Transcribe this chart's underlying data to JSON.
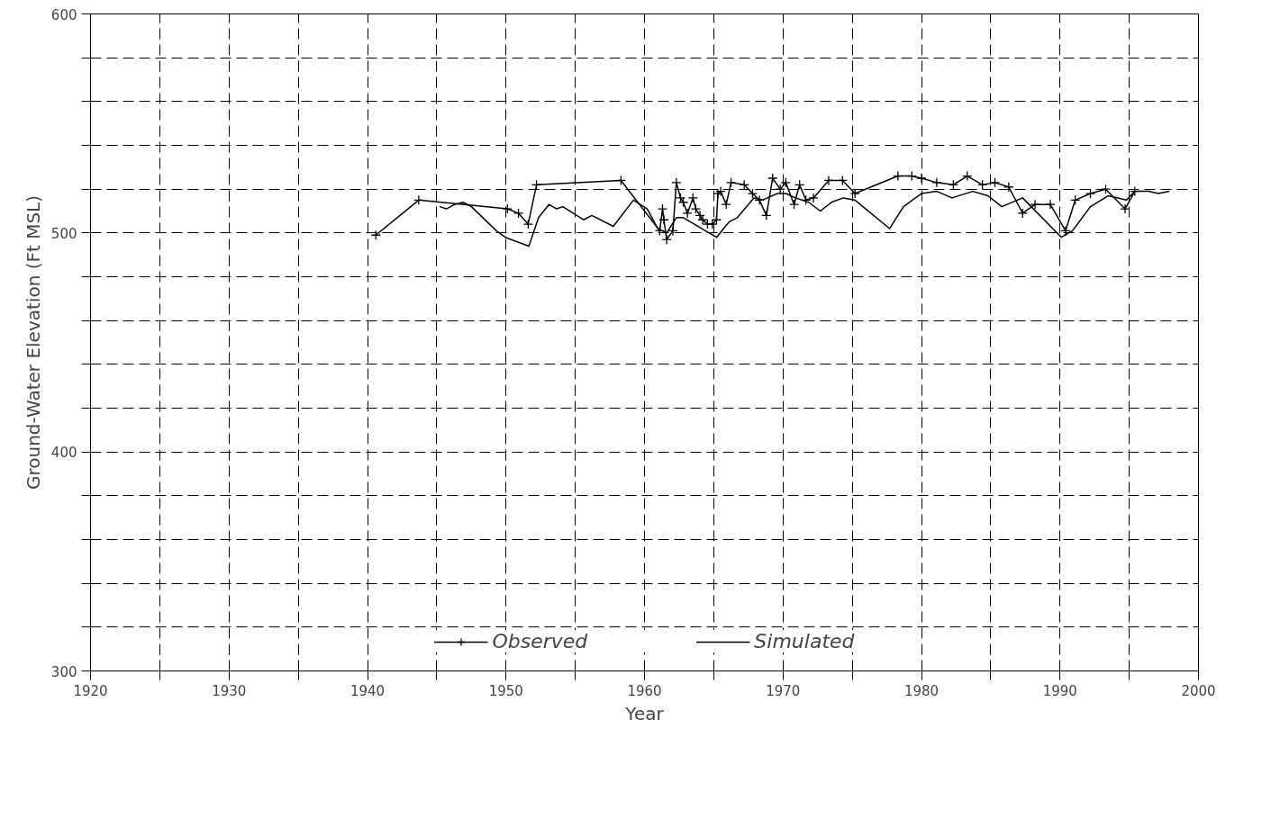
{
  "chart_data": {
    "type": "line",
    "xlabel": "Year",
    "ylabel": "Ground-Water Elevation (Ft MSL)",
    "xlim": [
      1920,
      2000
    ],
    "ylim": [
      300,
      600
    ],
    "xticks": [
      1920,
      {
        "value": 1925,
        "label": null
      },
      1930,
      {
        "value": 1935,
        "label": null
      },
      1940,
      {
        "value": 1945,
        "label": null
      },
      1950,
      {
        "value": 1955,
        "label": null
      },
      1960,
      {
        "value": 1965,
        "label": null
      },
      1970,
      {
        "value": 1975,
        "label": null
      },
      1980,
      {
        "value": 1985,
        "label": null
      },
      1990,
      {
        "value": 1995,
        "label": null
      },
      2000
    ],
    "yticks": [
      300,
      {
        "value": 320,
        "label": null
      },
      {
        "value": 340,
        "label": null
      },
      {
        "value": 360,
        "label": null
      },
      {
        "value": 380,
        "label": null
      },
      400,
      {
        "value": 420,
        "label": null
      },
      {
        "value": 440,
        "label": null
      },
      {
        "value": 460,
        "label": null
      },
      {
        "value": 480,
        "label": null
      },
      500,
      {
        "value": 520,
        "label": null
      },
      {
        "value": 540,
        "label": null
      },
      {
        "value": 560,
        "label": null
      },
      {
        "value": 580,
        "label": null
      },
      600
    ],
    "grid": true,
    "legend": "bottom",
    "line_style": "solid",
    "series": [
      {
        "name": "Observed",
        "color": "#000000",
        "marker": "cross",
        "x": [
          1940.6,
          1943.7,
          1950.1,
          1950.9,
          1951.6,
          1952.2,
          1958.3,
          1961.1,
          1961.3,
          1961.4,
          1961.6,
          1962.05,
          1962.3,
          1962.6,
          1962.8,
          1963.1,
          1963.5,
          1963.7,
          1964.0,
          1964.2,
          1964.55,
          1964.9,
          1965.2,
          1965.3,
          1965.5,
          1965.9,
          1966.25,
          1967.2,
          1967.8,
          1968.3,
          1968.8,
          1969.25,
          1969.8,
          1970.2,
          1970.8,
          1971.2,
          1971.65,
          1972.2,
          1973.3,
          1974.3,
          1975.2,
          1978.3,
          1979.3,
          1980.0,
          1981.1,
          1982.3,
          1983.3,
          1984.4,
          1985.3,
          1986.3,
          1987.3,
          1988.2,
          1989.3,
          1990.4,
          1991.1,
          1992.2,
          1993.3,
          1994.7,
          1995.4
        ],
        "values": [
          499,
          515,
          511,
          509,
          504,
          522,
          524,
          501,
          511,
          506,
          497,
          501,
          523,
          516,
          514,
          509,
          516,
          511,
          508,
          506,
          504,
          504,
          506,
          518,
          519,
          513,
          523,
          522,
          518,
          515,
          508,
          525,
          520,
          523,
          513,
          522,
          515,
          516,
          524,
          524,
          518,
          526,
          526,
          525,
          523,
          522,
          526,
          522,
          523,
          521,
          509,
          513,
          513,
          501,
          515,
          518,
          520,
          511,
          519
        ]
      },
      {
        "name": "Simulated",
        "color": "#000000",
        "marker": "none",
        "x": [
          1945.2,
          1945.7,
          1946.3,
          1946.9,
          1947.5,
          1949.3,
          1949.95,
          1951.65,
          1952.35,
          1953.1,
          1953.65,
          1954.1,
          1955.6,
          1956.2,
          1957.75,
          1959.2,
          1960.2,
          1960.95,
          1961.6,
          1962.3,
          1962.8,
          1965.2,
          1966.1,
          1966.7,
          1967.9,
          1968.5,
          1969.6,
          1970.2,
          1970.9,
          1971.85,
          1972.7,
          1973.5,
          1974.35,
          1975.2,
          1977.7,
          1978.7,
          1980.0,
          1981.1,
          1982.2,
          1983.7,
          1984.8,
          1985.8,
          1987.3,
          1990.1,
          1990.9,
          1992.2,
          1993.5,
          1994.8,
          1995.4,
          1996.4,
          1997.1,
          1997.9
        ],
        "values": [
          512,
          511,
          513,
          514,
          512,
          501,
          498,
          494,
          507,
          513,
          511,
          512,
          506,
          508,
          503,
          515,
          511,
          502,
          500,
          507,
          507,
          498,
          505,
          507,
          516,
          515,
          518,
          518,
          516,
          514,
          510,
          514,
          516,
          515,
          502,
          512,
          518,
          519,
          516,
          519,
          517,
          512,
          516,
          498,
          501,
          512,
          517,
          515,
          519,
          519,
          518,
          519
        ]
      }
    ]
  }
}
